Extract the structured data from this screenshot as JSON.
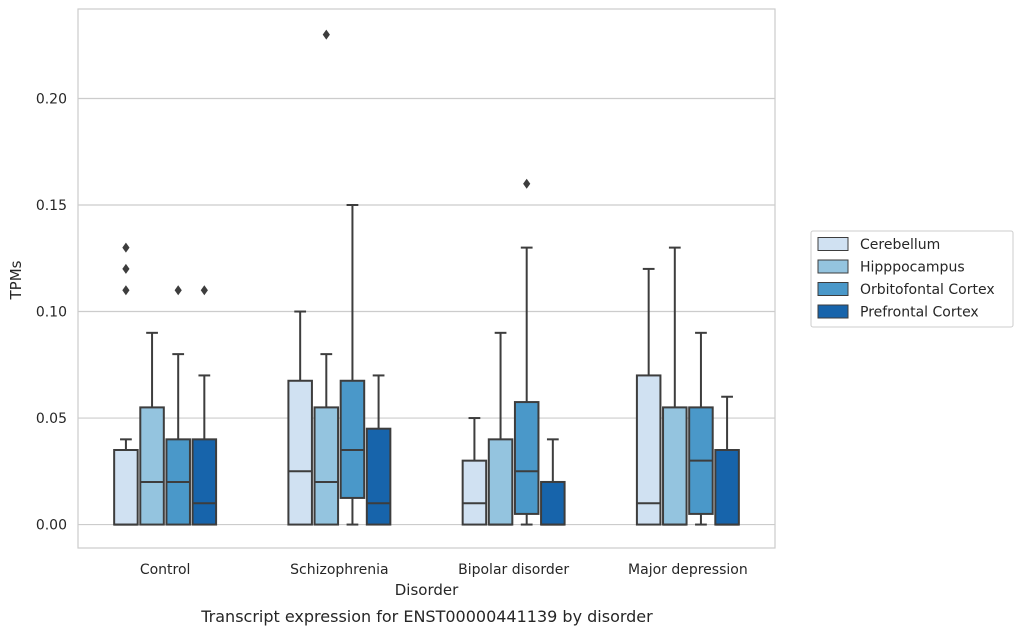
{
  "chart_data": {
    "type": "box",
    "caption": "Transcript expression for ENST00000441139 by disorder",
    "xlabel": "Disorder",
    "ylabel": "TPMs",
    "ylim": [
      -0.011,
      0.242
    ],
    "yticks": [
      0.0,
      0.05,
      0.1,
      0.15,
      0.2
    ],
    "ytick_labels": [
      "0.00",
      "0.05",
      "0.10",
      "0.15",
      "0.20"
    ],
    "grid": true,
    "legend_position": "right",
    "categories": [
      "Control",
      "Schizophrenia",
      "Bipolar disorder",
      "Major depression"
    ],
    "series": [
      {
        "name": "Cerebellum",
        "color": "#d0e1f2",
        "boxes": [
          {
            "whisker_low": 0.0,
            "q1": 0.0,
            "median": 0.0,
            "q3": 0.035,
            "whisker_high": 0.04,
            "outliers": [
              0.11,
              0.12,
              0.13
            ]
          },
          {
            "whisker_low": 0.0,
            "q1": 0.0,
            "median": 0.025,
            "q3": 0.0675,
            "whisker_high": 0.1,
            "outliers": []
          },
          {
            "whisker_low": 0.0,
            "q1": 0.0,
            "median": 0.01,
            "q3": 0.03,
            "whisker_high": 0.05,
            "outliers": []
          },
          {
            "whisker_low": 0.0,
            "q1": 0.0,
            "median": 0.01,
            "q3": 0.07,
            "whisker_high": 0.12,
            "outliers": []
          }
        ]
      },
      {
        "name": "Hipppocampus",
        "color": "#94c4df",
        "boxes": [
          {
            "whisker_low": 0.0,
            "q1": 0.0,
            "median": 0.02,
            "q3": 0.055,
            "whisker_high": 0.09,
            "outliers": []
          },
          {
            "whisker_low": 0.0,
            "q1": 0.0,
            "median": 0.02,
            "q3": 0.055,
            "whisker_high": 0.08,
            "outliers": [
              0.23
            ]
          },
          {
            "whisker_low": 0.0,
            "q1": 0.0,
            "median": 0.0,
            "q3": 0.04,
            "whisker_high": 0.09,
            "outliers": []
          },
          {
            "whisker_low": 0.0,
            "q1": 0.0,
            "median": 0.0,
            "q3": 0.055,
            "whisker_high": 0.13,
            "outliers": []
          }
        ]
      },
      {
        "name": "Orbitofontal Cortex",
        "color": "#4a98c9",
        "boxes": [
          {
            "whisker_low": 0.0,
            "q1": 0.0,
            "median": 0.02,
            "q3": 0.04,
            "whisker_high": 0.08,
            "outliers": [
              0.11
            ]
          },
          {
            "whisker_low": 0.0,
            "q1": 0.0125,
            "median": 0.035,
            "q3": 0.0675,
            "whisker_high": 0.15,
            "outliers": []
          },
          {
            "whisker_low": 0.0,
            "q1": 0.005,
            "median": 0.025,
            "q3": 0.0575,
            "whisker_high": 0.13,
            "outliers": [
              0.16
            ]
          },
          {
            "whisker_low": 0.0,
            "q1": 0.005,
            "median": 0.03,
            "q3": 0.055,
            "whisker_high": 0.09,
            "outliers": []
          }
        ]
      },
      {
        "name": "Prefrontal Cortex",
        "color": "#1764ab",
        "boxes": [
          {
            "whisker_low": 0.0,
            "q1": 0.0,
            "median": 0.01,
            "q3": 0.04,
            "whisker_high": 0.07,
            "outliers": [
              0.11
            ]
          },
          {
            "whisker_low": 0.0,
            "q1": 0.0,
            "median": 0.01,
            "q3": 0.045,
            "whisker_high": 0.07,
            "outliers": []
          },
          {
            "whisker_low": 0.0,
            "q1": 0.0,
            "median": 0.0,
            "q3": 0.02,
            "whisker_high": 0.04,
            "outliers": []
          },
          {
            "whisker_low": 0.0,
            "q1": 0.0,
            "median": 0.0,
            "q3": 0.035,
            "whisker_high": 0.06,
            "outliers": []
          }
        ]
      }
    ]
  }
}
